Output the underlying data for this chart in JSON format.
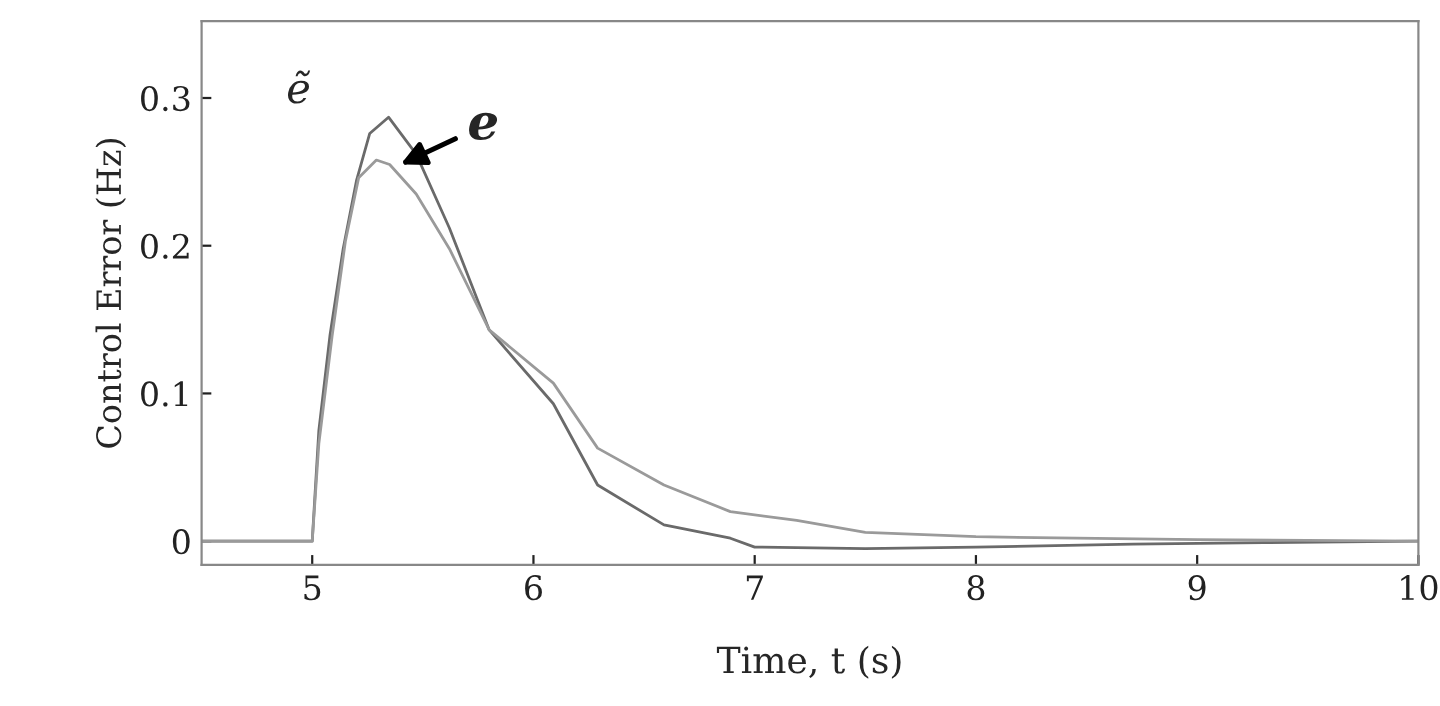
{
  "chart_data": {
    "type": "line",
    "xlabel": "Time, t (s)",
    "ylabel": "Control Error (Hz)",
    "xlim": [
      4.5,
      10
    ],
    "ylim": [
      -0.016,
      0.352
    ],
    "xticks": [
      5,
      6,
      7,
      8,
      9,
      10
    ],
    "yticks": [
      0,
      0.1,
      0.2,
      0.3
    ],
    "grid": false,
    "legend": false,
    "line_style": "solid",
    "marker": "none",
    "series": [
      {
        "color": "#6a6a6a",
        "x": [
          4.5,
          5.0,
          5.03,
          5.08,
          5.14,
          5.2,
          5.26,
          5.345,
          5.47,
          5.62,
          5.8,
          6.09,
          6.29,
          6.59,
          6.89,
          7.0,
          7.5,
          8.0,
          8.71,
          9.3,
          10
        ],
        "values": [
          0,
          0,
          0.075,
          0.139,
          0.198,
          0.244,
          0.276,
          0.287,
          0.262,
          0.212,
          0.143,
          0.093,
          0.038,
          0.011,
          0.002,
          -0.004,
          -0.005,
          -0.004,
          -0.002,
          -0.001,
          0
        ]
      },
      {
        "color": "#9a9a9a",
        "x": [
          4.5,
          5.0,
          5.03,
          5.09,
          5.15,
          5.21,
          5.29,
          5.35,
          5.47,
          5.62,
          5.8,
          6.09,
          6.29,
          6.59,
          6.89,
          7.19,
          7.5,
          8.0,
          9.0,
          10
        ],
        "values": [
          0,
          0,
          0.066,
          0.139,
          0.203,
          0.246,
          0.258,
          0.255,
          0.235,
          0.198,
          0.143,
          0.107,
          0.063,
          0.038,
          0.02,
          0.014,
          0.006,
          0.003,
          0.001,
          0
        ]
      }
    ],
    "annotations": [
      {
        "text": "ẽ",
        "x": 5.34,
        "y": 0.287
      },
      {
        "text": "e",
        "x": 5.4,
        "y": 0.255
      }
    ]
  }
}
